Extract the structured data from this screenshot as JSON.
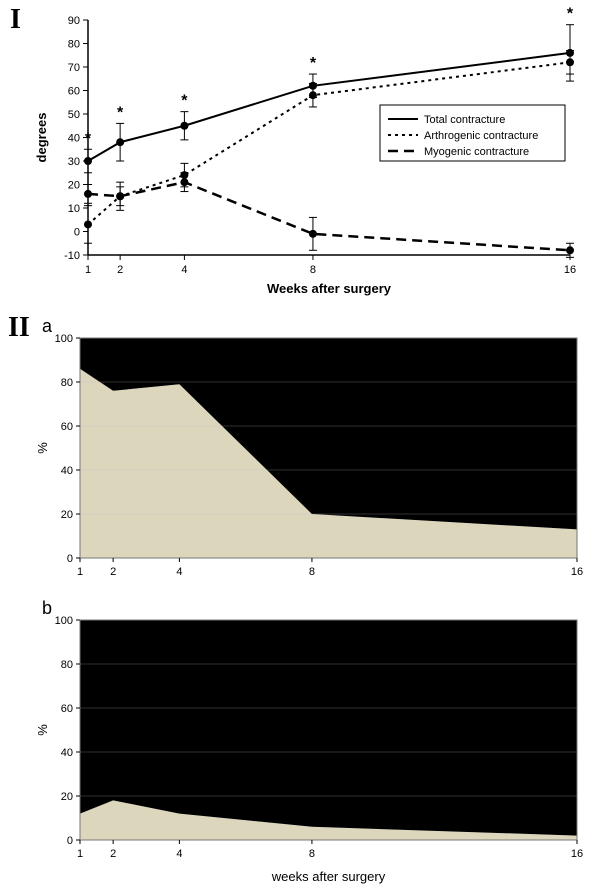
{
  "panelI": {
    "label": "I",
    "type": "line",
    "xlabel": "Weeks after surgery",
    "ylabel": "degrees",
    "x_axis_fontsize": 13,
    "y_axis_fontsize": 13,
    "tick_fontsize": 11,
    "x_ticks": [
      1,
      2,
      4,
      8,
      16
    ],
    "y_ticks": [
      -10,
      0,
      10,
      20,
      30,
      40,
      50,
      60,
      70,
      80,
      90
    ],
    "ylim": [
      -10,
      90
    ],
    "background_color": "#ffffff",
    "axis_color": "#000000",
    "tick_color": "#000000",
    "series": [
      {
        "name": "Total contracture",
        "style": "solid",
        "color": "#000000",
        "line_width": 2,
        "marker": "circle",
        "marker_fill": "#000000",
        "marker_size": 4,
        "x": [
          1,
          2,
          4,
          8,
          16
        ],
        "y": [
          30,
          38,
          45,
          62,
          76
        ],
        "err": [
          5,
          8,
          6,
          5,
          12
        ],
        "star": [
          true,
          true,
          true,
          true,
          true
        ]
      },
      {
        "name": "Arthrogenic contracture",
        "style": "dotted",
        "color": "#000000",
        "line_width": 2,
        "marker": "circle",
        "marker_fill": "#000000",
        "marker_size": 4,
        "x": [
          1,
          2,
          4,
          8,
          16
        ],
        "y": [
          3,
          15,
          24,
          58,
          72
        ],
        "err": [
          8,
          6,
          5,
          5,
          5
        ],
        "star": [
          false,
          false,
          false,
          false,
          false
        ]
      },
      {
        "name": "Myogenic contracture",
        "style": "dashed",
        "color": "#000000",
        "line_width": 2.5,
        "marker": "circle",
        "marker_fill": "#000000",
        "marker_size": 4,
        "x": [
          1,
          2,
          4,
          8,
          16
        ],
        "y": [
          16,
          15,
          21,
          -1,
          -8
        ],
        "err": [
          4,
          4,
          4,
          7,
          3
        ],
        "star": [
          false,
          false,
          false,
          false,
          false
        ]
      }
    ],
    "legend": {
      "border_color": "#000000",
      "background": "#ffffff",
      "fontsize": 11
    }
  },
  "panelIIa": {
    "label": "II",
    "sublabel": "a",
    "type": "area_stacked",
    "xlabel": "",
    "ylabel": "%",
    "tick_fontsize": 11,
    "x_ticks": [
      1,
      2,
      4,
      8,
      16
    ],
    "y_ticks": [
      0,
      20,
      40,
      60,
      80,
      100
    ],
    "ylim": [
      0,
      100
    ],
    "background_color": "#ffffff",
    "axis_color": "#000000",
    "grid_color": "#bfbfbf",
    "top_area_color": "#000000",
    "bottom_area_color": "#dcd6bd",
    "boundary_values": {
      "x": [
        1,
        2,
        4,
        8,
        16
      ],
      "y": [
        86,
        76,
        79,
        20,
        13
      ]
    }
  },
  "panelIIb": {
    "sublabel": "b",
    "type": "area_stacked",
    "xlabel": "weeks after surgery",
    "ylabel": "%",
    "tick_fontsize": 11,
    "x_ticks": [
      1,
      2,
      4,
      8,
      16
    ],
    "y_ticks": [
      0,
      20,
      40,
      60,
      80,
      100
    ],
    "ylim": [
      0,
      100
    ],
    "background_color": "#ffffff",
    "axis_color": "#000000",
    "grid_color": "#bfbfbf",
    "top_area_color": "#000000",
    "bottom_area_color": "#dcd6bd",
    "boundary_values": {
      "x": [
        1,
        2,
        4,
        8,
        16
      ],
      "y": [
        12,
        18,
        12,
        6,
        2
      ]
    }
  }
}
